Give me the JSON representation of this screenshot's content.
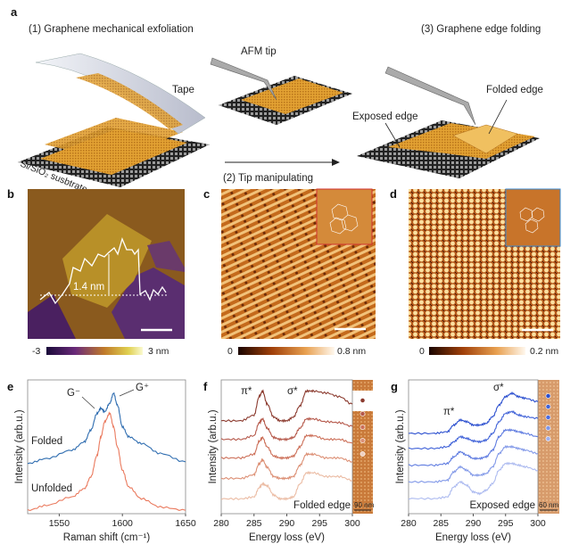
{
  "panel_a": {
    "label": "a",
    "step1": "(1) Graphene mechanical exfoliation",
    "step2": "(2) Tip manipulating",
    "step3": "(3) Graphene edge folding",
    "tape": "Tape",
    "afm_tip": "AFM tip",
    "substrate": "Si/SiO₂ susbtrate",
    "folded_edge": "Folded edge",
    "exposed_edge": "Exposed edge"
  },
  "panel_b": {
    "label": "b",
    "height_label": "1.4 nm",
    "cbar_min": "-3",
    "cbar_max": "3 nm"
  },
  "panel_c": {
    "label": "c",
    "cbar_min": "0",
    "cbar_max": "0.8 nm"
  },
  "panel_d": {
    "label": "d",
    "cbar_min": "0",
    "cbar_max": "0.2 nm"
  },
  "colors": {
    "folded_blue": "#2f6db0",
    "unfolded_orange": "#ea7a5e",
    "exposed_blue": "#3d5fd6",
    "folded_brown": "#8b3a2e"
  },
  "chart_data": [
    {
      "panel": "e",
      "type": "line",
      "xlabel": "Raman shift (cm⁻¹)",
      "ylabel": "Intensity (arb.u.)",
      "xlim": [
        1525,
        1650
      ],
      "ylim": [
        0,
        8
      ],
      "xticks": [
        "1550",
        "1600",
        "1650"
      ],
      "x": [
        1525,
        1540,
        1560,
        1570,
        1575,
        1580,
        1583,
        1586,
        1590,
        1593,
        1596,
        1600,
        1605,
        1615,
        1630,
        1650
      ],
      "series": [
        {
          "name": "Folded",
          "color": "#2f6db0",
          "values": [
            3.0,
            3.3,
            3.8,
            4.3,
            5.0,
            6.0,
            6.3,
            6.1,
            6.6,
            7.2,
            6.5,
            5.2,
            4.6,
            4.2,
            3.6,
            3.1
          ]
        },
        {
          "name": "Unfolded",
          "color": "#ea7a5e",
          "values": [
            0.2,
            0.5,
            1.0,
            1.5,
            2.2,
            3.5,
            4.6,
            5.5,
            6.0,
            5.2,
            4.0,
            2.6,
            1.6,
            0.9,
            0.4,
            0.2
          ]
        }
      ],
      "annotations": [
        "G⁻",
        "G⁺"
      ]
    },
    {
      "panel": "f",
      "type": "line",
      "xlabel": "Energy loss (eV)",
      "ylabel": "Intensity (arb.u.)",
      "xlim": [
        280,
        300
      ],
      "ylim": [
        0,
        7.2
      ],
      "xticks": [
        "280",
        "285",
        "290",
        "295",
        "300"
      ],
      "x": [
        280,
        283,
        285,
        285.8,
        286.3,
        287,
        288,
        289,
        290,
        291,
        292,
        293,
        294,
        296,
        298,
        300
      ],
      "series": [
        {
          "color": "#8b3a2e",
          "values": [
            5.0,
            5.0,
            5.3,
            6.3,
            6.6,
            5.9,
            5.2,
            5.0,
            5.0,
            5.2,
            5.8,
            6.6,
            6.6,
            6.5,
            6.3,
            5.9
          ]
        },
        {
          "color": "#b5584a",
          "values": [
            4.0,
            4.0,
            4.2,
            4.9,
            5.1,
            4.6,
            4.1,
            4.0,
            4.0,
            4.1,
            4.6,
            5.1,
            5.1,
            4.95,
            4.9,
            4.7
          ]
        },
        {
          "color": "#cc6f58",
          "values": [
            3.0,
            3.0,
            3.2,
            3.9,
            4.1,
            3.6,
            3.1,
            3.0,
            3.0,
            3.1,
            3.6,
            4.2,
            4.2,
            4.0,
            4.0,
            3.8
          ]
        },
        {
          "color": "#dc8f74",
          "values": [
            1.9,
            1.9,
            2.1,
            2.7,
            2.9,
            2.5,
            2.0,
            1.9,
            1.9,
            2.0,
            2.6,
            3.2,
            3.2,
            3.0,
            3.0,
            2.8
          ]
        },
        {
          "color": "#ebbca4",
          "values": [
            0.8,
            0.8,
            0.9,
            1.4,
            1.6,
            1.5,
            1.0,
            0.8,
            0.8,
            0.9,
            1.6,
            2.2,
            2.2,
            2.0,
            2.0,
            1.8
          ]
        }
      ],
      "annotations": [
        "π*",
        "σ*",
        "Folded edge",
        "90 nm"
      ]
    },
    {
      "panel": "g",
      "type": "line",
      "xlabel": "Energy loss (eV)",
      "ylabel": "Intensity (arb.u.)",
      "xlim": [
        280,
        300
      ],
      "ylim": [
        0,
        8
      ],
      "xticks": [
        "280",
        "285",
        "290",
        "295",
        "300"
      ],
      "x": [
        280,
        284,
        286,
        287,
        288,
        289,
        290,
        291,
        292,
        293,
        294,
        295,
        296,
        297,
        298,
        300
      ],
      "series": [
        {
          "color": "#2b4fcf",
          "values": [
            4.8,
            4.8,
            4.9,
            5.3,
            5.6,
            5.5,
            5.3,
            5.3,
            5.4,
            5.8,
            6.5,
            7.0,
            7.2,
            7.0,
            6.9,
            6.7
          ]
        },
        {
          "color": "#4163d8",
          "values": [
            3.9,
            3.9,
            4.0,
            4.3,
            4.6,
            4.5,
            4.35,
            4.3,
            4.4,
            4.8,
            5.5,
            6.0,
            6.1,
            5.9,
            5.8,
            5.7
          ]
        },
        {
          "color": "#5e7be0",
          "values": [
            2.9,
            2.9,
            3.0,
            3.4,
            3.7,
            3.5,
            3.3,
            3.3,
            3.4,
            3.8,
            4.6,
            5.0,
            5.0,
            4.9,
            4.8,
            4.6
          ]
        },
        {
          "color": "#8299e8",
          "values": [
            1.9,
            1.9,
            2.0,
            2.5,
            2.8,
            2.6,
            2.3,
            2.3,
            2.4,
            2.8,
            3.6,
            4.0,
            4.0,
            3.9,
            3.8,
            3.6
          ]
        },
        {
          "color": "#adbbf0",
          "values": [
            0.9,
            0.9,
            1.0,
            1.6,
            1.9,
            1.7,
            1.3,
            1.2,
            1.4,
            1.8,
            2.6,
            3.0,
            3.0,
            2.9,
            2.8,
            2.6
          ]
        }
      ],
      "annotations": [
        "π*",
        "σ*",
        "Exposed edge",
        "60 nm"
      ]
    }
  ]
}
